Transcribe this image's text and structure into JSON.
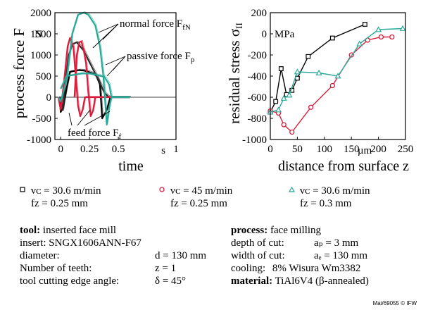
{
  "chart_data": [
    {
      "type": "line",
      "ylabel": "process force  F",
      "xlabel": "time",
      "y_unit": "N",
      "x_unit": "s",
      "xlim": [
        -0.05,
        1.0
      ],
      "ylim": [
        -1000,
        2000
      ],
      "x_ticks": [
        "0",
        "0.25",
        "0.5",
        "1"
      ],
      "y_ticks": [
        "-1000",
        "-500",
        "0",
        "500",
        "1000",
        "1500",
        "2000"
      ],
      "annotations": [
        {
          "label": "normal force",
          "sub": "fN"
        },
        {
          "label": "passive force",
          "sub": "p"
        },
        {
          "label": "feed force",
          "sub": "f"
        }
      ],
      "series": [
        {
          "color": "#000000",
          "points": [
            [
              -0.01,
              0
            ],
            [
              0.0,
              -350
            ],
            [
              0.02,
              -250
            ],
            [
              0.05,
              200
            ],
            [
              0.08,
              600
            ],
            [
              0.12,
              620
            ],
            [
              0.16,
              640
            ],
            [
              0.2,
              630
            ],
            [
              0.24,
              600
            ],
            [
              0.28,
              560
            ],
            [
              0.31,
              500
            ],
            [
              0.34,
              300
            ],
            [
              0.36,
              -500
            ],
            [
              0.4,
              -300
            ],
            [
              0.42,
              -100
            ],
            [
              0.43,
              0
            ],
            [
              0.6,
              0
            ]
          ]
        },
        {
          "color": "#2a2a2a",
          "points": [
            [
              0.0,
              0
            ],
            [
              0.02,
              -300
            ],
            [
              0.04,
              400
            ],
            [
              0.07,
              1000
            ],
            [
              0.1,
              1250
            ],
            [
              0.14,
              1300
            ],
            [
              0.2,
              1100
            ],
            [
              0.27,
              720
            ],
            [
              0.33,
              400
            ],
            [
              0.38,
              100
            ],
            [
              0.42,
              0
            ],
            [
              0.6,
              0
            ]
          ]
        },
        {
          "color": "#d81e3c",
          "points": [
            [
              -0.02,
              0
            ],
            [
              0.0,
              -300
            ],
            [
              0.03,
              400
            ],
            [
              0.06,
              1200
            ],
            [
              0.08,
              1400
            ],
            [
              0.11,
              1200
            ],
            [
              0.13,
              500
            ],
            [
              0.15,
              -200
            ],
            [
              0.17,
              -450
            ],
            [
              0.19,
              -300
            ],
            [
              0.21,
              0
            ],
            [
              0.6,
              0
            ]
          ]
        },
        {
          "color": "#d81e3c",
          "points": [
            [
              0.12,
              0
            ],
            [
              0.14,
              1000
            ],
            [
              0.16,
              1300
            ],
            [
              0.18,
              1320
            ],
            [
              0.2,
              1100
            ],
            [
              0.22,
              800
            ],
            [
              0.24,
              100
            ],
            [
              0.26,
              -450
            ],
            [
              0.28,
              -320
            ],
            [
              0.3,
              0
            ]
          ]
        },
        {
          "color": "#2aa898",
          "points": [
            [
              -0.02,
              0
            ],
            [
              0.0,
              -100
            ],
            [
              0.05,
              400
            ],
            [
              0.1,
              1500
            ],
            [
              0.15,
              1950
            ],
            [
              0.2,
              2000
            ],
            [
              0.24,
              1950
            ],
            [
              0.3,
              1700
            ],
            [
              0.34,
              1200
            ],
            [
              0.37,
              500
            ],
            [
              0.4,
              -650
            ],
            [
              0.42,
              -250
            ],
            [
              0.44,
              0
            ],
            [
              0.6,
              0
            ]
          ]
        },
        {
          "color": "#2aa898",
          "points": [
            [
              0.0,
              200
            ],
            [
              0.05,
              500
            ],
            [
              0.1,
              520
            ],
            [
              0.18,
              560
            ],
            [
              0.25,
              560
            ],
            [
              0.32,
              520
            ],
            [
              0.38,
              480
            ],
            [
              0.42,
              300
            ],
            [
              0.44,
              0
            ],
            [
              0.6,
              0
            ]
          ]
        }
      ]
    },
    {
      "type": "line",
      "ylabel": "residual stress  σ",
      "y_unit": "MPa",
      "xlabel": "distance from surface  z",
      "x_unit": "µm",
      "xlim": [
        0,
        250
      ],
      "ylim": [
        -1000,
        200
      ],
      "x_ticks": [
        "0",
        "50",
        "100",
        "150",
        "200",
        "250"
      ],
      "y_ticks": [
        "-1000",
        "-800",
        "-600",
        "-400",
        "-200",
        "0",
        "200"
      ],
      "series": [
        {
          "marker": "square",
          "color": "#000000",
          "points": [
            [
              0,
              -740
            ],
            [
              10,
              -640
            ],
            [
              20,
              -330
            ],
            [
              30,
              -575
            ],
            [
              40,
              -535
            ],
            [
              50,
              -420
            ],
            [
              70,
              -215
            ],
            [
              115,
              -40
            ],
            [
              175,
              90
            ]
          ]
        },
        {
          "marker": "circle",
          "color": "#d81e3c",
          "points": [
            [
              0,
              -730
            ],
            [
              15,
              -750
            ],
            [
              25,
              -860
            ],
            [
              40,
              -930
            ],
            [
              75,
              -695
            ],
            [
              115,
              -490
            ],
            [
              150,
              -200
            ],
            [
              180,
              -60
            ],
            [
              205,
              -30
            ],
            [
              225,
              -30
            ]
          ]
        },
        {
          "marker": "triangle",
          "color": "#2aa898",
          "points": [
            [
              0,
              -740
            ],
            [
              15,
              -720
            ],
            [
              25,
              -610
            ],
            [
              35,
              -580
            ],
            [
              50,
              -360
            ],
            [
              90,
              -370
            ],
            [
              125,
              -400
            ],
            [
              165,
              -95
            ],
            [
              200,
              40
            ],
            [
              245,
              50
            ]
          ]
        }
      ]
    }
  ],
  "legend": [
    {
      "marker": "square",
      "color": "#000000",
      "vc": "vᴄ = 30.6 m/min",
      "fz": "fᴢ  = 0.25 mm"
    },
    {
      "marker": "circle",
      "color": "#d81e3c",
      "vc": "vᴄ = 45 m/min",
      "fz": "fᴢ  = 0.25 mm"
    },
    {
      "marker": "triangle",
      "color": "#2aa898",
      "vc": "vᴄ = 30.6 m/min",
      "fz": "fᴢ  = 0.3   mm"
    }
  ],
  "tool": {
    "heading": "tool:",
    "heading_value": "inserted face mill",
    "insert": "insert: SNGX1606ANN-F67",
    "diameter_label": "diameter:",
    "diameter_value": "d = 130 mm",
    "teeth_label": "Number of teeth:",
    "teeth_value": "z = 1",
    "angle_label": "tool cutting edge angle:",
    "angle_value": "δ = 45°"
  },
  "process": {
    "heading": "process:",
    "heading_value": "face milling",
    "depth_label": "depth of cut:",
    "depth_value": "aₚ = 3     mm",
    "width_label": "width of cut:",
    "width_value": "aₑ = 130 mm",
    "cooling_label": "cooling:",
    "cooling_value": "8% Wisura Wm3382",
    "material_heading": "material:",
    "material_value": "TiAl6V4 (β-annealed)"
  },
  "credit": "Mai/69055 © IFW"
}
